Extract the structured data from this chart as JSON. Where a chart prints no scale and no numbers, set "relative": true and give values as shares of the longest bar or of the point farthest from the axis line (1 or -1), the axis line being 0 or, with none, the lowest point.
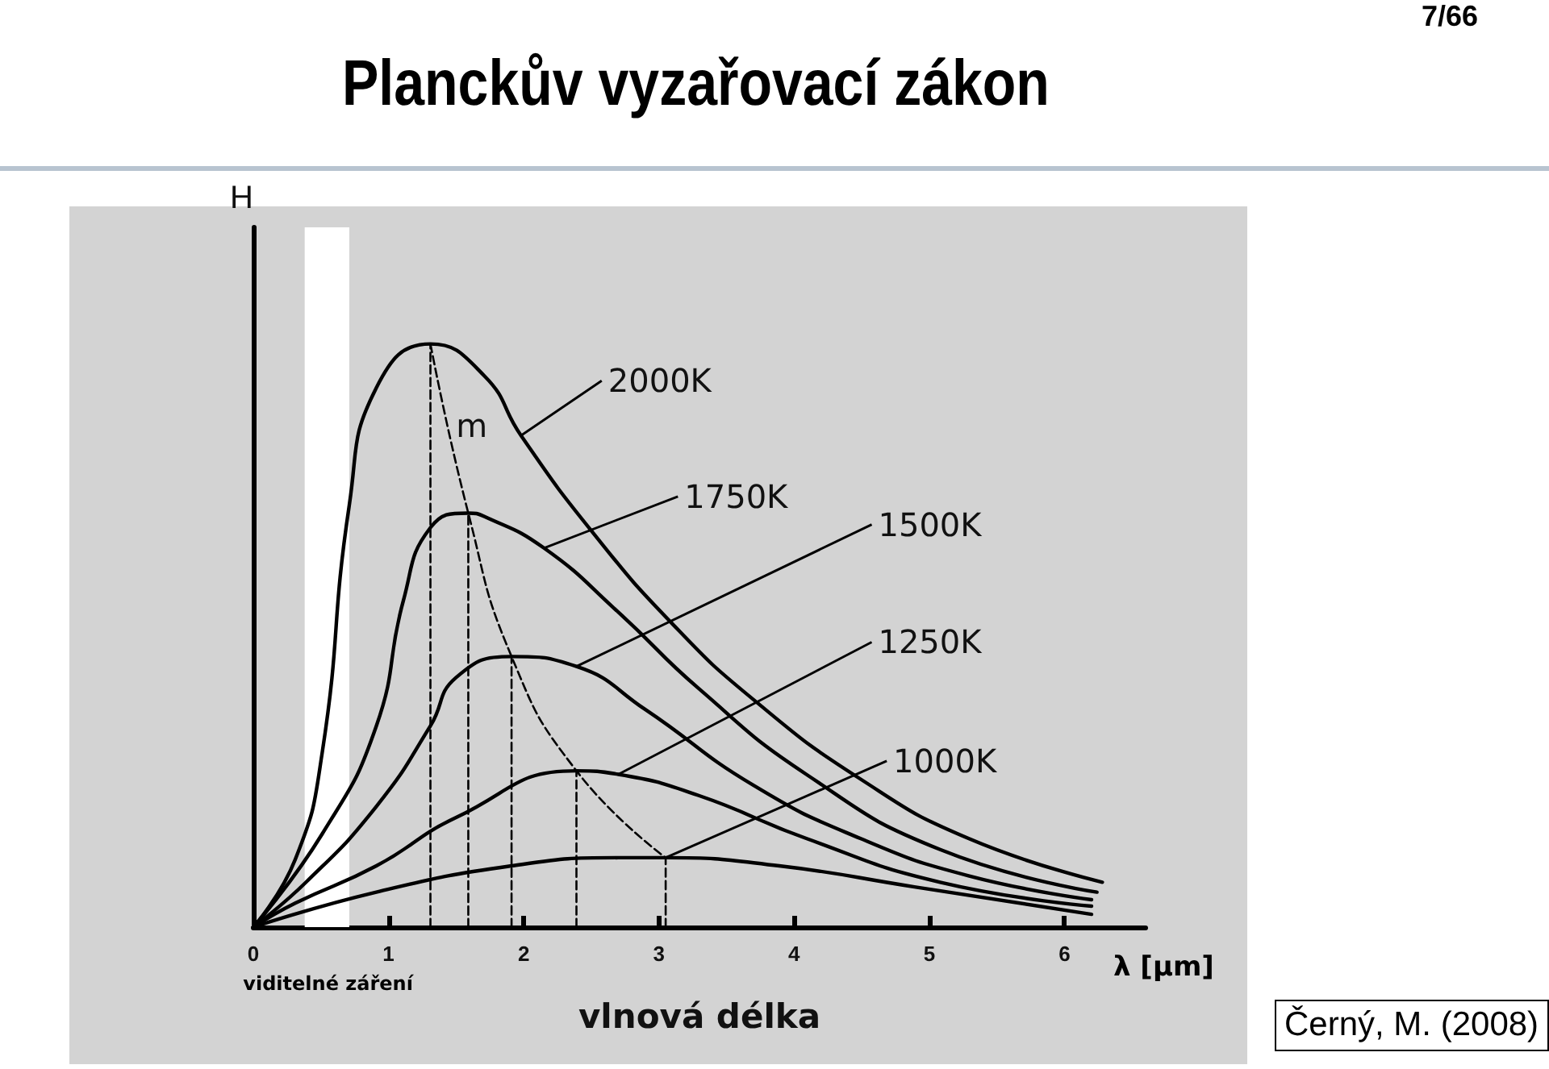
{
  "chart_data": {
    "type": "line",
    "title": "Planckův vyzařovací zákon",
    "xlabel": "vlnová délka",
    "ylabel": "H",
    "relative": true,
    "xlim": [
      0,
      6.6
    ],
    "xticks": [
      0,
      1,
      2,
      3,
      4,
      5,
      6
    ],
    "grid": false,
    "legend": false,
    "marker": "none",
    "line_style": "solid",
    "annotations": [
      "7/66",
      "λ [µm]",
      "Černý, M. (2008)",
      {
        "text": "m",
        "x": 1.5,
        "y": 0.84
      }
    ],
    "bands": [
      {
        "axis": "x",
        "from": 0.38,
        "to": 0.71,
        "label": "viditelné záření",
        "color": "#ffffff"
      }
    ],
    "series": [
      {
        "name": "2000K",
        "color": "#000000",
        "x": [
          0,
          0.31,
          0.51,
          0.71,
          0.91,
          1.31,
          1.71,
          1.98,
          2.51,
          3.1,
          3.7,
          4.49,
          5.29,
          6.28
        ],
        "values": [
          0,
          0.116,
          0.3,
          0.724,
          0.925,
          1,
          0.945,
          0.843,
          0.677,
          0.52,
          0.39,
          0.254,
          0.152,
          0.077
        ]
      },
      {
        "name": "1750K",
        "color": "#000000",
        "x": [
          0,
          0.51,
          0.91,
          1.11,
          1.31,
          1.59,
          1.71,
          2.15,
          2.7,
          3.29,
          4.09,
          5.08,
          6.24
        ],
        "values": [
          0,
          0.16,
          0.345,
          0.56,
          0.685,
          0.71,
          0.704,
          0.65,
          0.54,
          0.41,
          0.262,
          0.133,
          0.06
        ]
      },
      {
        "name": "1500K",
        "color": "#000000",
        "x": [
          0,
          0.39,
          0.91,
          1.31,
          1.5,
          1.91,
          2.39,
          2.9,
          3.7,
          4.49,
          5.29,
          6.2
        ],
        "values": [
          0,
          0.077,
          0.207,
          0.345,
          0.428,
          0.464,
          0.447,
          0.373,
          0.243,
          0.152,
          0.088,
          0.047
        ]
      },
      {
        "name": "1250K",
        "color": "#000000",
        "x": [
          0,
          0.31,
          0.91,
          1.5,
          2.39,
          2.7,
          3.29,
          4.09,
          5.08,
          6.2
        ],
        "values": [
          0,
          0.041,
          0.105,
          0.188,
          0.268,
          0.262,
          0.226,
          0.152,
          0.077,
          0.036
        ]
      },
      {
        "name": "1000K",
        "color": "#000000",
        "x": [
          0,
          0.91,
          1.91,
          2.7,
          3.05,
          3.89,
          4.89,
          6.2
        ],
        "values": [
          0,
          0.06,
          0.105,
          0.119,
          0.119,
          0.105,
          0.069,
          0.022
        ]
      },
      {
        "color": "#000000",
        "line_style": "dashed",
        "x": [
          1.31,
          1.59,
          1.91,
          2.39,
          3.05
        ],
        "values": [
          1,
          0.71,
          0.464,
          0.268,
          0.119
        ]
      },
      {
        "color": "#000000",
        "line_style": "dashed",
        "x": [
          1.31,
          1.31
        ],
        "values": [
          0,
          1
        ]
      },
      {
        "color": "#000000",
        "line_style": "dashed",
        "x": [
          1.59,
          1.59
        ],
        "values": [
          0,
          0.71
        ]
      },
      {
        "color": "#000000",
        "line_style": "dashed",
        "x": [
          1.91,
          1.91
        ],
        "values": [
          0,
          0.464
        ]
      },
      {
        "color": "#000000",
        "line_style": "dashed",
        "x": [
          2.39,
          2.39
        ],
        "values": [
          0,
          0.268
        ]
      },
      {
        "color": "#000000",
        "line_style": "dashed",
        "x": [
          3.05,
          3.05
        ],
        "values": [
          0,
          0.119
        ]
      }
    ]
  }
}
